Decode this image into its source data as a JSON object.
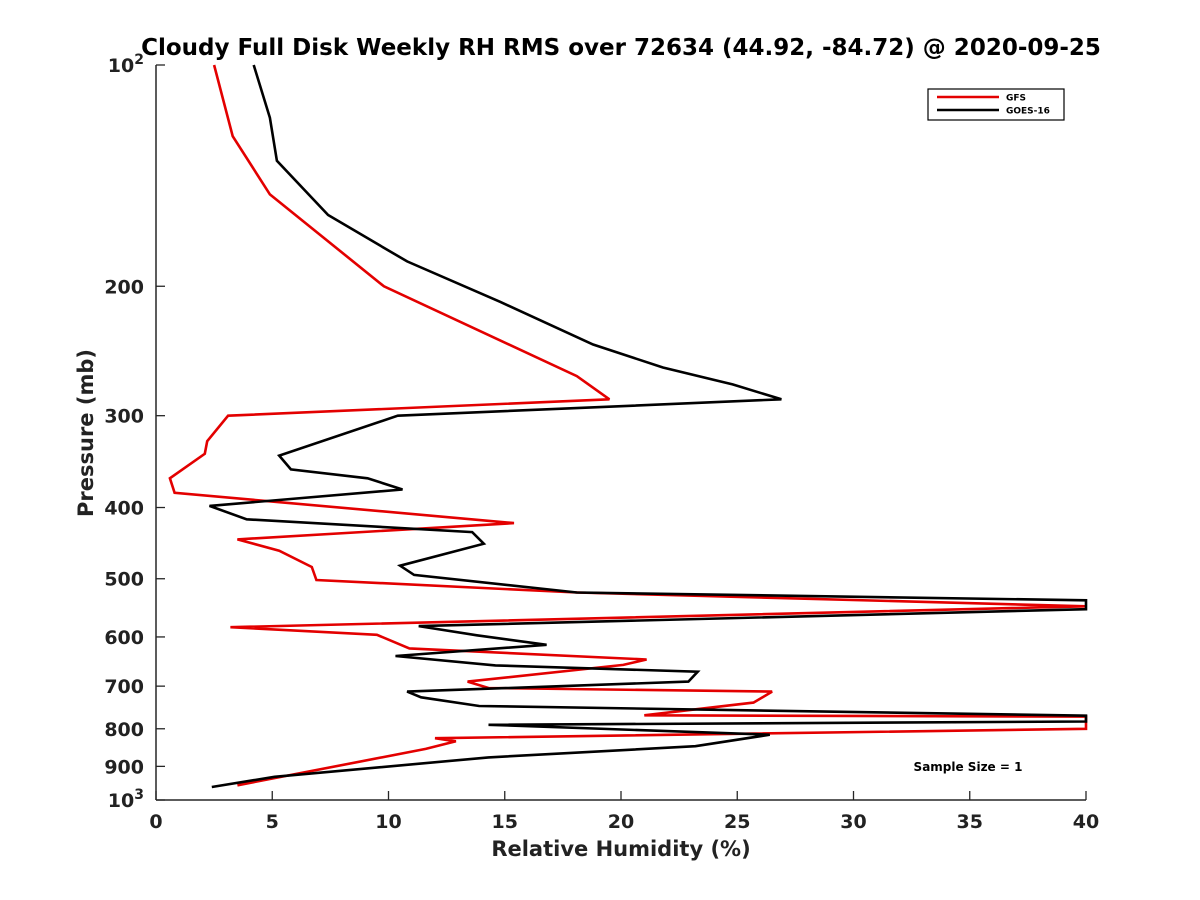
{
  "chart_data": {
    "type": "line",
    "title": "Cloudy Full Disk Weekly RH RMS over 72634 (44.92, -84.72) @ 2020-09-25",
    "xlabel": "Relative Humidity (%)",
    "ylabel": "Pressure (mb)",
    "xlim": [
      0,
      40
    ],
    "ylim": [
      100,
      1000
    ],
    "yscale": "log",
    "y_inverted": true,
    "grid": false,
    "legend_position": "top-right",
    "x_ticks": [
      "0",
      "5",
      "10",
      "15",
      "20",
      "25",
      "30",
      "35",
      "40"
    ],
    "y_ticks": [
      {
        "value": 100,
        "base": "10",
        "exp": "2"
      },
      {
        "value": 200,
        "label": "200"
      },
      {
        "value": 300,
        "label": "300"
      },
      {
        "value": 400,
        "label": "400"
      },
      {
        "value": 500,
        "label": "500"
      },
      {
        "value": 600,
        "label": "600"
      },
      {
        "value": 700,
        "label": "700"
      },
      {
        "value": 800,
        "label": "800"
      },
      {
        "value": 900,
        "label": "900"
      },
      {
        "value": 1000,
        "base": "10",
        "exp": "3"
      }
    ],
    "annotation": "Sample Size = 1",
    "series": [
      {
        "name": "GFS",
        "color": "#e30000",
        "points": [
          [
            2.5,
            100
          ],
          [
            3.3,
            125
          ],
          [
            4.9,
            150
          ],
          [
            9.8,
            200
          ],
          [
            18.1,
            265
          ],
          [
            19.5,
            285
          ],
          [
            3.1,
            300
          ],
          [
            2.2,
            325
          ],
          [
            2.1,
            338
          ],
          [
            0.6,
            365
          ],
          [
            0.8,
            382
          ],
          [
            15.4,
            420
          ],
          [
            3.5,
            442
          ],
          [
            5.3,
            458
          ],
          [
            6.7,
            482
          ],
          [
            6.9,
            502
          ],
          [
            18.1,
            522
          ],
          [
            40,
            545
          ],
          [
            3.2,
            582
          ],
          [
            9.5,
            596
          ],
          [
            10.9,
            622
          ],
          [
            21.1,
            644
          ],
          [
            20.1,
            655
          ],
          [
            13.4,
            690
          ],
          [
            14.3,
            704
          ],
          [
            26.5,
            712
          ],
          [
            25.7,
            737
          ],
          [
            21.0,
            767
          ],
          [
            40,
            770
          ],
          [
            40,
            800
          ],
          [
            12.0,
            824
          ],
          [
            12.9,
            832
          ],
          [
            11.6,
            852
          ],
          [
            3.5,
            955
          ]
        ]
      },
      {
        "name": "GOES-16",
        "color": "#000000",
        "points": [
          [
            4.2,
            100
          ],
          [
            4.9,
            118
          ],
          [
            5.2,
            135
          ],
          [
            7.4,
            160
          ],
          [
            10.8,
            185
          ],
          [
            14.8,
            210
          ],
          [
            18.8,
            240
          ],
          [
            21.8,
            258
          ],
          [
            24.8,
            272
          ],
          [
            26.9,
            285
          ],
          [
            10.4,
            300
          ],
          [
            5.3,
            340
          ],
          [
            5.8,
            355
          ],
          [
            9.1,
            365
          ],
          [
            10.6,
            378
          ],
          [
            2.3,
            398
          ],
          [
            3.9,
            415
          ],
          [
            13.6,
            432
          ],
          [
            14.1,
            448
          ],
          [
            10.5,
            480
          ],
          [
            11.1,
            494
          ],
          [
            18.1,
            522
          ],
          [
            40,
            535
          ],
          [
            40,
            550
          ],
          [
            11.3,
            580
          ],
          [
            13.8,
            597
          ],
          [
            16.8,
            615
          ],
          [
            10.3,
            637
          ],
          [
            14.6,
            656
          ],
          [
            23.3,
            669
          ],
          [
            22.9,
            690
          ],
          [
            10.8,
            712
          ],
          [
            11.4,
            725
          ],
          [
            13.9,
            745
          ],
          [
            40,
            768
          ],
          [
            40,
            782
          ],
          [
            14.3,
            790
          ],
          [
            26.4,
            815
          ],
          [
            23.2,
            845
          ],
          [
            14.3,
            875
          ],
          [
            5.1,
            930
          ],
          [
            2.4,
            960
          ]
        ]
      }
    ]
  }
}
